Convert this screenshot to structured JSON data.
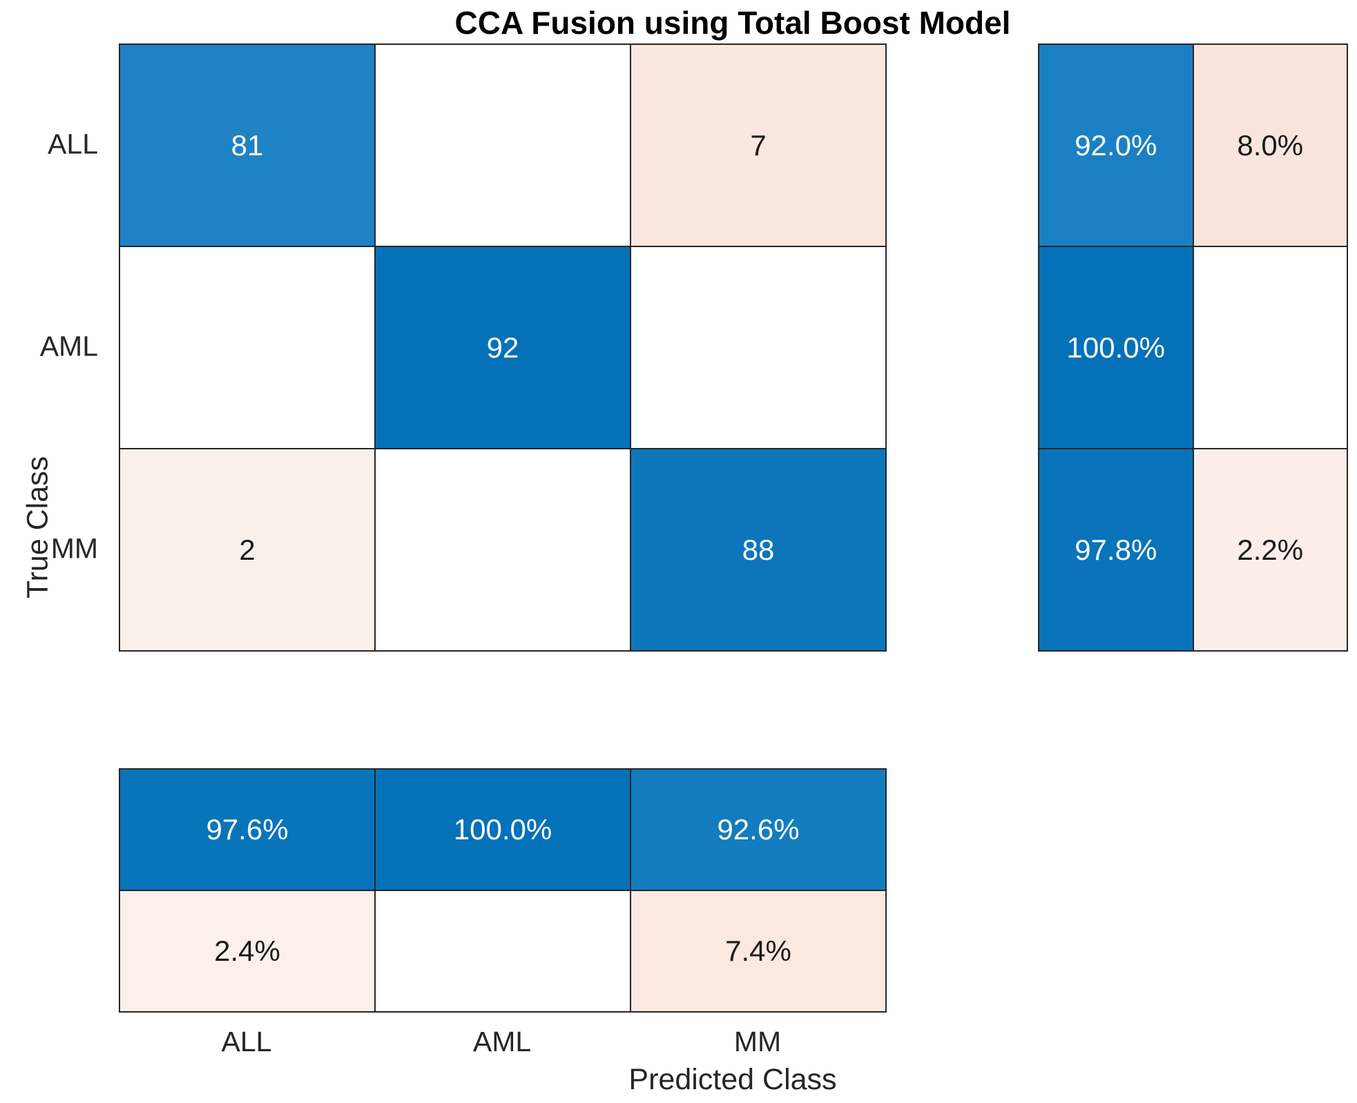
{
  "chart_data": {
    "type": "heatmap",
    "subtype": "confusion_matrix",
    "title": "CCA Fusion using Total Boost Model",
    "xlabel": "Predicted Class",
    "ylabel": "True Class",
    "classes": [
      "ALL",
      "AML",
      "MM"
    ],
    "confusion_counts": [
      [
        81,
        null,
        7
      ],
      [
        null,
        92,
        null
      ],
      [
        2,
        null,
        88
      ]
    ],
    "row_summary_percent": [
      [
        92.0,
        8.0
      ],
      [
        100.0,
        null
      ],
      [
        97.8,
        2.2
      ]
    ],
    "col_summary_percent": [
      [
        97.6,
        100.0,
        92.6
      ],
      [
        2.4,
        null,
        7.4
      ]
    ],
    "legend_position": "none",
    "grid": true,
    "matrix_cells": [
      [
        {
          "text": "81",
          "bg": "#1F82C4",
          "fg": "#FFFFFF"
        },
        {
          "text": "",
          "bg": "#FFFFFF",
          "fg": "#1A1A1A"
        },
        {
          "text": "7",
          "bg": "#F9E7E0",
          "fg": "#1A1A1A"
        }
      ],
      [
        {
          "text": "",
          "bg": "#FFFFFF",
          "fg": "#1A1A1A"
        },
        {
          "text": "92",
          "bg": "#0571B8",
          "fg": "#FFFFFF"
        },
        {
          "text": "",
          "bg": "#FFFFFF",
          "fg": "#1A1A1A"
        }
      ],
      [
        {
          "text": "2",
          "bg": "#FAF0EA",
          "fg": "#1A1A1A"
        },
        {
          "text": "",
          "bg": "#FFFFFF",
          "fg": "#1A1A1A"
        },
        {
          "text": "88",
          "bg": "#0D76BB",
          "fg": "#FFFFFF"
        }
      ]
    ],
    "row_summary_cells": [
      [
        {
          "text": "92.0%",
          "bg": "#1A80C3",
          "fg": "#FFFFFF"
        },
        {
          "text": "8.0%",
          "bg": "#F9E5DD",
          "fg": "#1A1A1A"
        }
      ],
      [
        {
          "text": "100.0%",
          "bg": "#0571B8",
          "fg": "#FFFFFF"
        },
        {
          "text": "",
          "bg": "#FFFFFF",
          "fg": "#1A1A1A"
        }
      ],
      [
        {
          "text": "97.8%",
          "bg": "#0974BA",
          "fg": "#FFFFFF"
        },
        {
          "text": "2.2%",
          "bg": "#FBEDE7",
          "fg": "#1A1A1A"
        }
      ]
    ],
    "col_summary_cells": [
      [
        {
          "text": "97.6%",
          "bg": "#0874BA",
          "fg": "#FFFFFF"
        },
        {
          "text": "100.0%",
          "bg": "#0571B8",
          "fg": "#FFFFFF"
        },
        {
          "text": "92.6%",
          "bg": "#137CBE",
          "fg": "#FFFFFF"
        }
      ],
      [
        {
          "text": "2.4%",
          "bg": "#FBF0EA",
          "fg": "#1A1A1A"
        },
        {
          "text": "",
          "bg": "#FFFFFF",
          "fg": "#1A1A1A"
        },
        {
          "text": "7.4%",
          "bg": "#FAE8E1",
          "fg": "#1A1A1A"
        }
      ]
    ],
    "colors": {
      "diagonal_blue_max": "#0571B8",
      "diagonal_blue_mid": "#0D76BB",
      "diagonal_blue_light": "#1F82C4",
      "offdiagonal_pink": "#F9E7E0",
      "offdiagonal_pink_light": "#FAF0EA",
      "grid_line": "#262626",
      "empty_cell": "#FFFFFF"
    }
  }
}
